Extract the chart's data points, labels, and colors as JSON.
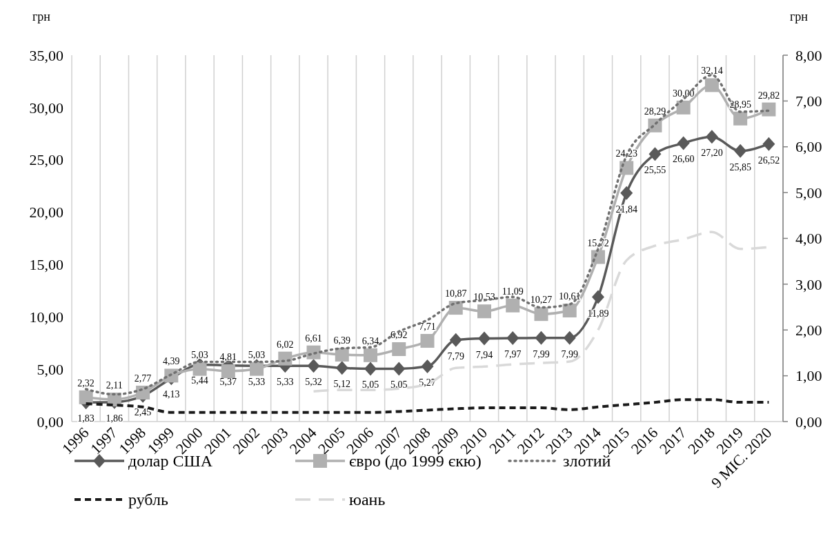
{
  "chart_data": {
    "type": "line",
    "ylabel": "грн",
    "y2label": "грн",
    "categories": [
      "1996",
      "1997",
      "1998",
      "1999",
      "2000",
      "2001",
      "2002",
      "2003",
      "2004",
      "2005",
      "2006",
      "2007",
      "2008",
      "2009",
      "2010",
      "2011",
      "2012",
      "2013",
      "2014",
      "2015",
      "2016",
      "2017",
      "2018",
      "2019",
      "9 МІС. 2020"
    ],
    "series": [
      {
        "name": "долар США",
        "color": "#595959",
        "marker": "diamond",
        "line_style": "solid",
        "values": [
          1.83,
          1.86,
          2.45,
          4.13,
          5.44,
          5.37,
          5.33,
          5.33,
          5.32,
          5.12,
          5.05,
          5.05,
          5.27,
          7.79,
          7.94,
          7.97,
          7.99,
          7.99,
          11.89,
          21.84,
          25.55,
          26.6,
          27.2,
          25.85,
          26.52
        ],
        "value_labels": [
          "1,83",
          "1,86",
          "2,45",
          "4,13",
          "5,44",
          "5,37",
          "5,33",
          "5,33",
          "5,32",
          "5,12",
          "5,05",
          "5,05",
          "5,27",
          "7,79",
          "7,94",
          "7,97",
          "7,99",
          "7,99",
          "11,89",
          "21,84",
          "25,55",
          "26,60",
          "27,20",
          "25,85",
          "26,52"
        ]
      },
      {
        "name": "євро (до 1999 єкю)",
        "color": "#b0b0b0",
        "marker": "square",
        "line_style": "solid",
        "values": [
          2.32,
          2.11,
          2.77,
          4.39,
          5.03,
          4.81,
          5.03,
          6.02,
          6.61,
          6.39,
          6.34,
          6.92,
          7.71,
          10.87,
          10.53,
          11.09,
          10.27,
          10.61,
          15.72,
          24.23,
          28.29,
          30.0,
          32.14,
          28.95,
          29.82
        ],
        "value_labels": [
          "2,32",
          "2,11",
          "2,77",
          "4,39",
          "5,03",
          "4,81",
          "5,03",
          "6,02",
          "6,61",
          "6,39",
          "6,34",
          "6,92",
          "7,71",
          "10,87",
          "10,53",
          "11,09",
          "10,27",
          "10,61",
          "15,72",
          "24,23",
          "28,29",
          "30,00",
          "32,14",
          "28,95",
          "29,82"
        ]
      },
      {
        "name": "злотий",
        "color": "#707070",
        "marker": "none",
        "line_style": "dotted",
        "values": [
          3.1,
          2.6,
          3.1,
          4.5,
          5.7,
          5.7,
          5.7,
          5.8,
          6.5,
          7.0,
          7.1,
          8.6,
          9.7,
          11.3,
          11.6,
          11.9,
          10.9,
          11.2,
          16.5,
          25.4,
          28.4,
          30.8,
          33.1,
          29.6,
          29.7
        ]
      },
      {
        "name": "рубль",
        "color": "#1a1a1a",
        "marker": "none",
        "line_style": "dashed",
        "axis": "y2",
        "values": [
          0.39,
          0.36,
          0.32,
          0.2,
          0.2,
          0.2,
          0.2,
          0.2,
          0.2,
          0.2,
          0.2,
          0.22,
          0.25,
          0.28,
          0.3,
          0.3,
          0.3,
          0.26,
          0.32,
          0.37,
          0.42,
          0.48,
          0.48,
          0.42,
          0.42
        ]
      },
      {
        "name": "юань",
        "color": "#d9d9d9",
        "marker": "none",
        "line_style": "longdash",
        "axis": "y2",
        "values": [
          null,
          null,
          null,
          null,
          null,
          null,
          null,
          null,
          0.66,
          0.69,
          0.69,
          0.72,
          0.82,
          1.17,
          1.2,
          1.25,
          1.28,
          1.31,
          2.0,
          3.52,
          3.84,
          3.98,
          4.14,
          3.77,
          3.81
        ]
      }
    ],
    "ylim": [
      0,
      35
    ],
    "yticks": [
      {
        "value": 0,
        "label": "0,00"
      },
      {
        "value": 5,
        "label": "5,00"
      },
      {
        "value": 10,
        "label": "10,00"
      },
      {
        "value": 15,
        "label": "15,00"
      },
      {
        "value": 20,
        "label": "20,00"
      },
      {
        "value": 25,
        "label": "25,00"
      },
      {
        "value": 30,
        "label": "30,00"
      },
      {
        "value": 35,
        "label": "35,00"
      }
    ],
    "y2lim": [
      0,
      8
    ],
    "y2ticks": [
      {
        "value": 0,
        "label": "0,00"
      },
      {
        "value": 1,
        "label": "1,00"
      },
      {
        "value": 2,
        "label": "2,00"
      },
      {
        "value": 3,
        "label": "3,00"
      },
      {
        "value": 4,
        "label": "4,00"
      },
      {
        "value": 5,
        "label": "5,00"
      },
      {
        "value": 6,
        "label": "6,00"
      },
      {
        "value": 7,
        "label": "7,00"
      },
      {
        "value": 8,
        "label": "8,00"
      }
    ],
    "grid": "x",
    "legend": "bottom"
  }
}
